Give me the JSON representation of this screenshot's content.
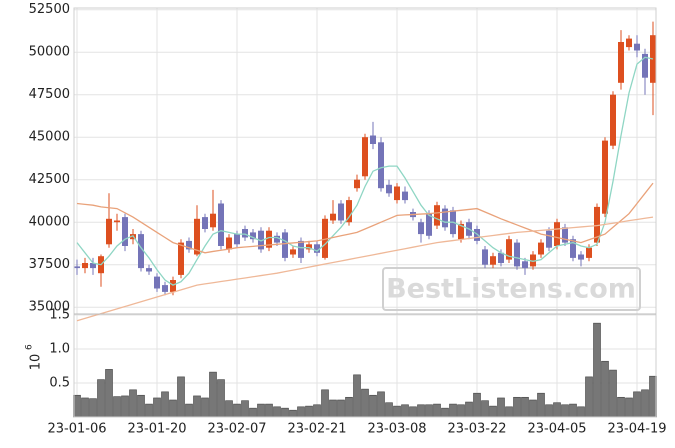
{
  "chart_data": [
    {
      "type": "candlestick",
      "categories": [
        "23-01-06",
        null,
        null,
        null,
        null,
        null,
        null,
        null,
        null,
        null,
        "23-01-20",
        null,
        null,
        null,
        null,
        null,
        null,
        null,
        null,
        null,
        "23-02-07",
        null,
        null,
        null,
        null,
        null,
        null,
        null,
        null,
        null,
        "23-02-21",
        null,
        null,
        null,
        null,
        null,
        null,
        null,
        null,
        null,
        "23-03-08",
        null,
        null,
        null,
        null,
        null,
        null,
        null,
        null,
        null,
        "23-03-22",
        null,
        null,
        null,
        null,
        null,
        null,
        null,
        null,
        null,
        "23-04-05",
        null,
        null,
        null,
        null,
        null,
        null,
        null,
        null,
        null,
        "23-04-19",
        null,
        null
      ],
      "open": [
        37400,
        37300,
        37600,
        37000,
        38700,
        40000,
        40300,
        39000,
        39300,
        37300,
        36800,
        36300,
        35900,
        36900,
        38900,
        38100,
        40300,
        39700,
        41100,
        38400,
        39300,
        39600,
        39400,
        39500,
        38500,
        39200,
        39400,
        38100,
        38900,
        38400,
        38700,
        37900,
        40100,
        41100,
        40000,
        42000,
        42700,
        45100,
        44700,
        42200,
        41300,
        41800,
        40600,
        40000,
        40500,
        39800,
        40800,
        40700,
        39000,
        40000,
        39600,
        38400,
        37500,
        38200,
        37800,
        38800,
        37700,
        37400,
        38100,
        39500,
        38600,
        39700,
        39000,
        38100,
        37900,
        38800,
        40500,
        44500,
        48200,
        50300,
        50500,
        49900,
        48200
      ],
      "high": [
        37800,
        37900,
        37900,
        38100,
        41700,
        40500,
        40500,
        39600,
        39500,
        37500,
        37000,
        36500,
        36800,
        39000,
        39100,
        41000,
        40500,
        41900,
        41300,
        39300,
        39500,
        39800,
        39600,
        39700,
        39700,
        39400,
        39600,
        38600,
        39100,
        38900,
        38900,
        40400,
        41300,
        41300,
        41500,
        42800,
        45200,
        45900,
        45000,
        42500,
        42300,
        42100,
        40800,
        40200,
        40700,
        41200,
        41000,
        40900,
        40100,
        40200,
        39800,
        38600,
        38200,
        38400,
        39200,
        39000,
        37900,
        38300,
        39000,
        39700,
        40200,
        39900,
        39200,
        38300,
        38700,
        41100,
        45000,
        47700,
        51300,
        51000,
        51000,
        50200,
        51800
      ],
      "low": [
        36900,
        37000,
        36900,
        36200,
        38500,
        39500,
        38300,
        38700,
        37100,
        36900,
        35900,
        35700,
        35700,
        36700,
        38200,
        38000,
        39400,
        39500,
        38400,
        38200,
        38500,
        38900,
        38800,
        38200,
        38300,
        38600,
        37700,
        37900,
        37600,
        38200,
        38000,
        37800,
        39900,
        39900,
        39800,
        41800,
        42500,
        44300,
        41800,
        41500,
        41100,
        41100,
        40100,
        38800,
        39000,
        39600,
        39500,
        39100,
        38800,
        39000,
        38700,
        37300,
        37300,
        37400,
        37600,
        37200,
        36900,
        37200,
        37900,
        38300,
        38400,
        38600,
        37700,
        37400,
        37700,
        38600,
        40300,
        44300,
        47800,
        50100,
        49700,
        47500,
        46300
      ],
      "close": [
        37300,
        37600,
        37300,
        38000,
        40200,
        40100,
        38600,
        39300,
        37300,
        37100,
        36100,
        35900,
        36600,
        38800,
        38400,
        40200,
        39600,
        40500,
        38600,
        39100,
        38700,
        39100,
        39000,
        38400,
        39500,
        38800,
        37900,
        38400,
        37900,
        38700,
        38200,
        40200,
        40500,
        40100,
        41300,
        42500,
        45000,
        44600,
        42000,
        41700,
        42100,
        41300,
        40300,
        39300,
        39200,
        41000,
        39700,
        39300,
        39900,
        39200,
        38900,
        37500,
        38000,
        37600,
        39000,
        37400,
        37300,
        38100,
        38800,
        38500,
        40000,
        38800,
        37900,
        37800,
        38500,
        40900,
        44800,
        47500,
        50600,
        50800,
        50100,
        48500,
        51000
      ],
      "up_color": "#dd4f1f",
      "down_color": "#7474b8",
      "lines": [
        {
          "color": "#8fd6c4",
          "values": [
            38800,
            38200,
            37600,
            37500,
            38000,
            38600,
            39000,
            39200,
            38500,
            37900,
            37200,
            36600,
            36300,
            36500,
            37000,
            37800,
            38600,
            39300,
            39500,
            39400,
            39300,
            39300,
            39100,
            38900,
            39100,
            39100,
            38900,
            38600,
            38500,
            38500,
            38300,
            38700,
            39200,
            39700,
            40300,
            41000,
            42100,
            43000,
            43200,
            43300,
            43300,
            42600,
            41800,
            41000,
            40400,
            40200,
            40000,
            40000,
            39800,
            39600,
            39300,
            38900,
            38500,
            38200,
            38000,
            37900,
            37800,
            37700,
            37800,
            38200,
            38600,
            38700,
            38800,
            38600,
            38500,
            38700,
            40000,
            42400,
            45100,
            47600,
            49300,
            49700,
            49600
          ]
        },
        {
          "color": "#e9a27a",
          "values": [
            41100,
            41050,
            41000,
            40900,
            40850,
            40800,
            40550,
            40300,
            40000,
            39700,
            39400,
            39100,
            38800,
            38650,
            38500,
            38350,
            38200,
            38280,
            38350,
            38420,
            38500,
            38540,
            38580,
            38620,
            38660,
            38700,
            38740,
            38780,
            38820,
            38860,
            38900,
            39000,
            39100,
            39200,
            39300,
            39400,
            39600,
            39800,
            40000,
            40200,
            40400,
            40430,
            40450,
            40480,
            40500,
            40550,
            40600,
            40650,
            40700,
            40750,
            40800,
            40600,
            40400,
            40200,
            40020,
            39840,
            39660,
            39480,
            39300,
            39200,
            39100,
            39000,
            38900,
            38800,
            38970,
            39130,
            39300,
            39700,
            40100,
            40500,
            41100,
            41700,
            42300
          ]
        },
        {
          "color": "#efb898",
          "values": [
            34200,
            34340,
            34480,
            34620,
            34760,
            34900,
            35040,
            35180,
            35320,
            35460,
            35600,
            35740,
            35880,
            36020,
            36160,
            36300,
            36370,
            36440,
            36510,
            36580,
            36650,
            36720,
            36790,
            36860,
            36930,
            37000,
            37090,
            37180,
            37270,
            37360,
            37450,
            37540,
            37630,
            37720,
            37810,
            37900,
            37990,
            38080,
            38170,
            38260,
            38350,
            38440,
            38530,
            38620,
            38710,
            38800,
            38860,
            38920,
            38980,
            39040,
            39100,
            39160,
            39220,
            39280,
            39340,
            39400,
            39440,
            39480,
            39520,
            39560,
            39600,
            39640,
            39680,
            39720,
            39760,
            39800,
            39870,
            39940,
            40010,
            40090,
            40160,
            40230,
            40300
          ]
        }
      ],
      "ylim": [
        34600,
        52600
      ],
      "yticks": [
        35000,
        37500,
        40000,
        42500,
        45000,
        47500,
        50000,
        52500
      ],
      "grid": true,
      "watermark": "BestListens.com"
    },
    {
      "type": "bar",
      "color": "#777777",
      "values": [
        0.32,
        0.28,
        0.27,
        0.55,
        0.7,
        0.3,
        0.31,
        0.4,
        0.32,
        0.19,
        0.28,
        0.37,
        0.25,
        0.59,
        0.19,
        0.31,
        0.28,
        0.66,
        0.55,
        0.24,
        0.19,
        0.24,
        0.13,
        0.19,
        0.19,
        0.15,
        0.13,
        0.1,
        0.15,
        0.16,
        0.18,
        0.4,
        0.25,
        0.25,
        0.29,
        0.62,
        0.41,
        0.32,
        0.37,
        0.21,
        0.16,
        0.18,
        0.15,
        0.18,
        0.18,
        0.19,
        0.13,
        0.19,
        0.18,
        0.22,
        0.35,
        0.24,
        0.16,
        0.28,
        0.15,
        0.29,
        0.29,
        0.25,
        0.35,
        0.18,
        0.21,
        0.18,
        0.19,
        0.15,
        0.59,
        1.38,
        0.82,
        0.69,
        0.29,
        0.28,
        0.37,
        0.4,
        0.6
      ],
      "ylim": [
        0,
        1.5
      ],
      "yticks": [
        0.5,
        {
          "value": 1,
          "label": "1.0"
        },
        1.5
      ],
      "y_label_base": "10",
      "y_label_exponent": "6",
      "grid": true
    }
  ]
}
